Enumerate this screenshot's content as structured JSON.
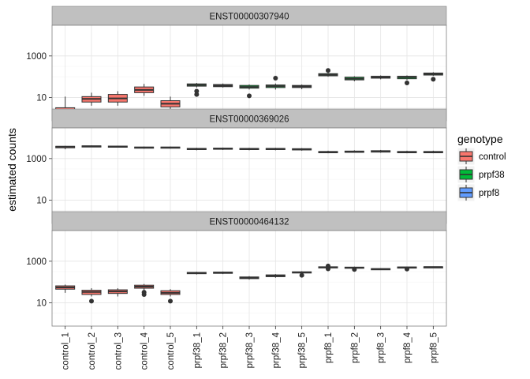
{
  "chart_data": {
    "type": "boxplot",
    "ylabel": "estimated counts",
    "yscale": "log10",
    "ylim": [
      0.75,
      30000
    ],
    "yticks": [
      10,
      1000
    ],
    "ytick_labels": [
      "10",
      "1000"
    ],
    "grid": true,
    "legend_title": "genotype",
    "legend_position": "right",
    "categories": [
      "control_1",
      "control_2",
      "control_3",
      "control_4",
      "control_5",
      "prpf38_1",
      "prpf38_2",
      "prpf38_3",
      "prpf38_4",
      "prpf38_5",
      "prpf8_1",
      "prpf8_2",
      "prpf8_3",
      "prpf8_4",
      "prpf8_5"
    ],
    "genotypes": [
      {
        "name": "control",
        "color": "#F8766D"
      },
      {
        "name": "prpf38",
        "color": "#00BA38"
      },
      {
        "name": "prpf8",
        "color": "#619CFF"
      }
    ],
    "category_genotype": [
      0,
      0,
      0,
      0,
      0,
      1,
      1,
      1,
      1,
      1,
      1,
      1,
      1,
      1,
      1
    ],
    "panels": [
      {
        "title": "ENST00000307940",
        "boxes": [
          {
            "low": 1,
            "q1": 1,
            "med": 2,
            "q3": 3.2,
            "high": 11,
            "out": []
          },
          {
            "low": 4,
            "q1": 6,
            "med": 8.5,
            "q3": 11,
            "high": 17,
            "out": [
              1
            ]
          },
          {
            "low": 4,
            "q1": 6,
            "med": 9,
            "q3": 14,
            "high": 20,
            "out": [
              1
            ]
          },
          {
            "low": 12,
            "q1": 17,
            "med": 23,
            "q3": 32,
            "high": 45,
            "out": []
          },
          {
            "low": 2.5,
            "q1": 3.5,
            "med": 5,
            "q3": 7,
            "high": 11,
            "out": []
          },
          {
            "low": 30,
            "q1": 35,
            "med": 40,
            "q3": 45,
            "high": 50,
            "out": [
              14,
              20
            ]
          },
          {
            "low": 30,
            "q1": 33,
            "med": 37,
            "q3": 42,
            "high": 47,
            "out": []
          },
          {
            "low": 24,
            "q1": 28,
            "med": 32,
            "q3": 38,
            "high": 42,
            "out": [
              12
            ]
          },
          {
            "low": 24,
            "q1": 30,
            "med": 35,
            "q3": 40,
            "high": 47,
            "out": [
              85
            ]
          },
          {
            "low": 25,
            "q1": 30,
            "med": 34,
            "q3": 38,
            "high": 42,
            "out": []
          },
          {
            "low": 100,
            "q1": 110,
            "med": 125,
            "q3": 140,
            "high": 155,
            "out": [
              200
            ]
          },
          {
            "low": 60,
            "q1": 70,
            "med": 80,
            "q3": 95,
            "high": 105,
            "out": []
          },
          {
            "low": 75,
            "q1": 85,
            "med": 95,
            "q3": 105,
            "high": 115,
            "out": []
          },
          {
            "low": 70,
            "q1": 80,
            "med": 95,
            "q3": 105,
            "high": 115,
            "out": [
              50
            ]
          },
          {
            "low": 110,
            "q1": 120,
            "med": 135,
            "q3": 150,
            "high": 165,
            "out": [
              75
            ]
          }
        ]
      },
      {
        "title": "ENST00000369026",
        "boxes": [
          {
            "low": 2800,
            "q1": 3300,
            "med": 3700,
            "q3": 3900,
            "high": 4100,
            "out": []
          },
          {
            "low": 3500,
            "q1": 3700,
            "med": 3900,
            "q3": 4100,
            "high": 4300,
            "out": []
          },
          {
            "low": 3400,
            "q1": 3600,
            "med": 3800,
            "q3": 4000,
            "high": 4200,
            "out": []
          },
          {
            "low": 3000,
            "q1": 3200,
            "med": 3400,
            "q3": 3600,
            "high": 3800,
            "out": []
          },
          {
            "low": 3000,
            "q1": 3200,
            "med": 3400,
            "q3": 3600,
            "high": 3800,
            "out": []
          },
          {
            "low": 2500,
            "q1": 2700,
            "med": 2900,
            "q3": 3100,
            "high": 3300,
            "out": []
          },
          {
            "low": 2600,
            "q1": 2800,
            "med": 3000,
            "q3": 3200,
            "high": 3400,
            "out": []
          },
          {
            "low": 2500,
            "q1": 2700,
            "med": 2900,
            "q3": 3100,
            "high": 3300,
            "out": []
          },
          {
            "low": 2500,
            "q1": 2700,
            "med": 2900,
            "q3": 3100,
            "high": 3300,
            "out": []
          },
          {
            "low": 2400,
            "q1": 2600,
            "med": 2800,
            "q3": 3000,
            "high": 3200,
            "out": []
          },
          {
            "low": 1800,
            "q1": 1900,
            "med": 2000,
            "q3": 2200,
            "high": 2400,
            "out": []
          },
          {
            "low": 1900,
            "q1": 2000,
            "med": 2100,
            "q3": 2300,
            "high": 2500,
            "out": []
          },
          {
            "low": 1900,
            "q1": 2050,
            "med": 2200,
            "q3": 2400,
            "high": 2600,
            "out": []
          },
          {
            "low": 1800,
            "q1": 1900,
            "med": 2000,
            "q3": 2200,
            "high": 2400,
            "out": []
          },
          {
            "low": 1800,
            "q1": 1900,
            "med": 2000,
            "q3": 2200,
            "high": 2400,
            "out": []
          }
        ]
      },
      {
        "title": "ENST00000464132",
        "boxes": [
          {
            "low": 30,
            "q1": 45,
            "med": 55,
            "q3": 65,
            "high": 75,
            "out": []
          },
          {
            "low": 20,
            "q1": 25,
            "med": 33,
            "q3": 40,
            "high": 50,
            "out": [
              12
            ]
          },
          {
            "low": 20,
            "q1": 28,
            "med": 35,
            "q3": 42,
            "high": 50,
            "out": []
          },
          {
            "low": 40,
            "q1": 50,
            "med": 60,
            "q3": 70,
            "high": 80,
            "out": [
              25,
              32
            ]
          },
          {
            "low": 20,
            "q1": 25,
            "med": 30,
            "q3": 38,
            "high": 45,
            "out": [
              12
            ]
          },
          {
            "low": 230,
            "q1": 250,
            "med": 270,
            "q3": 290,
            "high": 310,
            "out": []
          },
          {
            "low": 240,
            "q1": 260,
            "med": 280,
            "q3": 300,
            "high": 320,
            "out": []
          },
          {
            "low": 130,
            "q1": 145,
            "med": 160,
            "q3": 175,
            "high": 190,
            "out": []
          },
          {
            "low": 160,
            "q1": 180,
            "med": 200,
            "q3": 220,
            "high": 240,
            "out": []
          },
          {
            "low": 250,
            "q1": 270,
            "med": 290,
            "q3": 310,
            "high": 330,
            "out": [
              210
            ]
          },
          {
            "low": 450,
            "q1": 480,
            "med": 510,
            "q3": 540,
            "high": 570,
            "out": [
              430,
              590
            ]
          },
          {
            "low": 430,
            "q1": 460,
            "med": 490,
            "q3": 520,
            "high": 550,
            "out": [
              400
            ]
          },
          {
            "low": 380,
            "q1": 400,
            "med": 420,
            "q3": 440,
            "high": 460,
            "out": []
          },
          {
            "low": 450,
            "q1": 470,
            "med": 500,
            "q3": 530,
            "high": 560,
            "out": [
              420
            ]
          },
          {
            "low": 470,
            "q1": 490,
            "med": 520,
            "q3": 540,
            "high": 560,
            "out": []
          }
        ]
      }
    ]
  }
}
